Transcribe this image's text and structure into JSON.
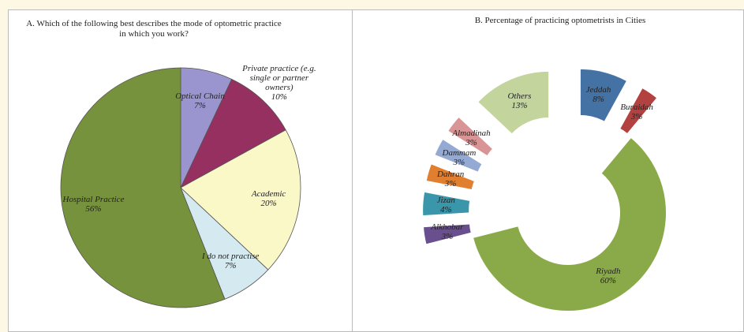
{
  "chart_data": [
    {
      "type": "pie",
      "title": "A. Which of the following best describes the mode of optometric practice in which you work?",
      "categories": [
        "Optical Chain",
        "Private practice (e.g. single or partner owners)",
        "Academic",
        "I do not practise",
        "Hospital Practice"
      ],
      "values": [
        7,
        10,
        20,
        7,
        56
      ],
      "value_labels": [
        "7%",
        "10%",
        "20%",
        "7%",
        "56%"
      ],
      "colors": [
        "#9b95cf",
        "#953060",
        "#fbf8c8",
        "#d5eaf0",
        "#76923c"
      ]
    },
    {
      "type": "donut",
      "title": "B. Percentage of practicing optometrists in Cities",
      "categories": [
        "Jeddah",
        "Buraidah",
        "Riyadh",
        "Alkhobar",
        "Jizan",
        "Dahran",
        "Dammam",
        "Almadinah",
        "Others"
      ],
      "values": [
        8,
        3,
        60,
        3,
        4,
        3,
        3,
        3,
        13
      ],
      "value_labels": [
        "8%",
        "3%",
        "60%",
        "3%",
        "4%",
        "3%",
        "3%",
        "3%",
        "13%"
      ],
      "colors": [
        "#4472a4",
        "#b3413f",
        "#8aaa4a",
        "#6a4f8e",
        "#3a97ab",
        "#e07f30",
        "#94aad4",
        "#d99595",
        "#c3d49d"
      ]
    }
  ]
}
